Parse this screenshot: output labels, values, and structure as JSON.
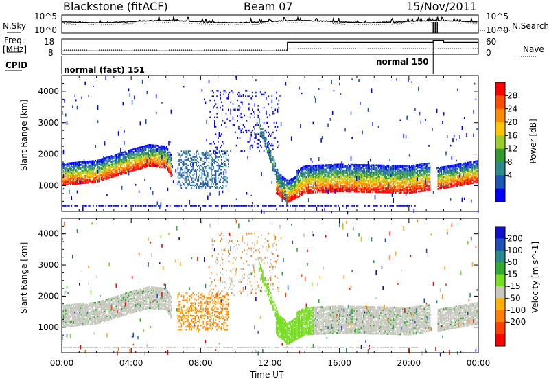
{
  "header": {
    "station": "Blackstone (fitACF)",
    "beam": "Beam 07",
    "date": "15/Nov/2011"
  },
  "top_panels": {
    "nsky_label": "N.Sky",
    "nsky_ticks": [
      "10^5",
      "10^0"
    ],
    "nsearch_label": "N.Search",
    "nsearch_ticks": [
      "10^5",
      "10^0"
    ],
    "freq_label_1": "Freq.",
    "freq_label_2": "[MHz]",
    "freq_ticks": [
      "18",
      "8"
    ],
    "nave_label": "Nave",
    "nave_ticks": [
      "60",
      "0"
    ],
    "cpid_label": "CPID",
    "cpid_modes": [
      {
        "name": "normal (fast) 151",
        "start_hour": 0,
        "end_hour": 21.3
      },
      {
        "name": "normal 150",
        "start_hour": 21.3,
        "end_hour": 24
      }
    ]
  },
  "x_axis": {
    "label": "Time UT",
    "ticks": [
      "00:00",
      "04:00",
      "08:00",
      "12:00",
      "16:00",
      "20:00",
      "00:00"
    ]
  },
  "power_colorbar": {
    "label": "Power [dB]",
    "ticks": [
      "28",
      "24",
      "20",
      "16",
      "12",
      "8",
      "4"
    ],
    "colors": [
      "#ff0000",
      "#ff4d00",
      "#ff8c00",
      "#ffc400",
      "#9ccc2a",
      "#339933",
      "#2d8a8a",
      "#1e56b4",
      "#0000ff"
    ]
  },
  "velocity_colorbar": {
    "label": "Velocity [m s^-1]",
    "ticks": [
      "200",
      "100",
      "50",
      "15",
      "-15",
      "-50",
      "-100",
      "-200"
    ],
    "colors": [
      "#1010cc",
      "#1e4fb8",
      "#2a8a8a",
      "#33aa33",
      "#77dd22",
      "#c8c8c0",
      "#ffb000",
      "#ff8000",
      "#ff4000",
      "#ff0000"
    ]
  },
  "chart_data": [
    {
      "type": "line",
      "title": "N.Sky / N.Search",
      "x": [
        0,
        2,
        4,
        6,
        8,
        10,
        12,
        14,
        16,
        18,
        20,
        22,
        24
      ],
      "series": [
        {
          "name": "N.Sky",
          "values": [
            3.6,
            3.4,
            3.3,
            3.5,
            3.2,
            3.1,
            3.3,
            3.5,
            3.6,
            3.8,
            3.9,
            3.8,
            4.1
          ]
        },
        {
          "name": "N.Search",
          "values": [
            3.3,
            3.2,
            3.1,
            3.3,
            3.0,
            2.9,
            3.0,
            3.3,
            3.4,
            3.5,
            3.6,
            3.5,
            3.7
          ]
        }
      ],
      "xlim": [
        0,
        24
      ],
      "ylim": [
        0,
        5
      ]
    },
    {
      "type": "line",
      "title": "Freq. / Nave",
      "x": [
        0,
        13,
        13,
        21.4,
        21.4,
        24
      ],
      "series": [
        {
          "name": "Freq.",
          "values": [
            10.3,
            10.3,
            16.8,
            16.8,
            17.8,
            16.8
          ]
        },
        {
          "name": "Nave",
          "values": [
            14,
            14,
            22,
            22,
            24,
            22
          ]
        }
      ],
      "xlim": [
        0,
        24
      ]
    },
    {
      "type": "heatmap",
      "title": "Power",
      "xlabel": "Time UT",
      "ylabel": "Slant Range [km]",
      "xlim": [
        0,
        24
      ],
      "ylim": [
        180,
        4500
      ],
      "yticks": [
        1000,
        2000,
        3000,
        4000
      ],
      "scatter_band_km": [
        [
          0,
          1250
        ],
        [
          2,
          1350
        ],
        [
          4,
          1700
        ],
        [
          5,
          1850
        ],
        [
          6,
          1800
        ],
        [
          6.3,
          1500
        ],
        [
          9,
          1200
        ],
        [
          12,
          1150
        ],
        [
          13,
          700
        ],
        [
          14,
          1000
        ],
        [
          16,
          1050
        ],
        [
          20,
          1000
        ],
        [
          22,
          1150
        ],
        [
          24,
          1350
        ]
      ],
      "range_db": [
        4,
        30
      ]
    },
    {
      "type": "heatmap",
      "title": "Velocity",
      "xlabel": "Time UT",
      "ylabel": "Slant Range [km]",
      "xlim": [
        0,
        24
      ],
      "ylim": [
        180,
        4500
      ],
      "yticks": [
        1000,
        2000,
        3000,
        4000
      ],
      "range_velocity": [
        -200,
        200
      ]
    }
  ]
}
